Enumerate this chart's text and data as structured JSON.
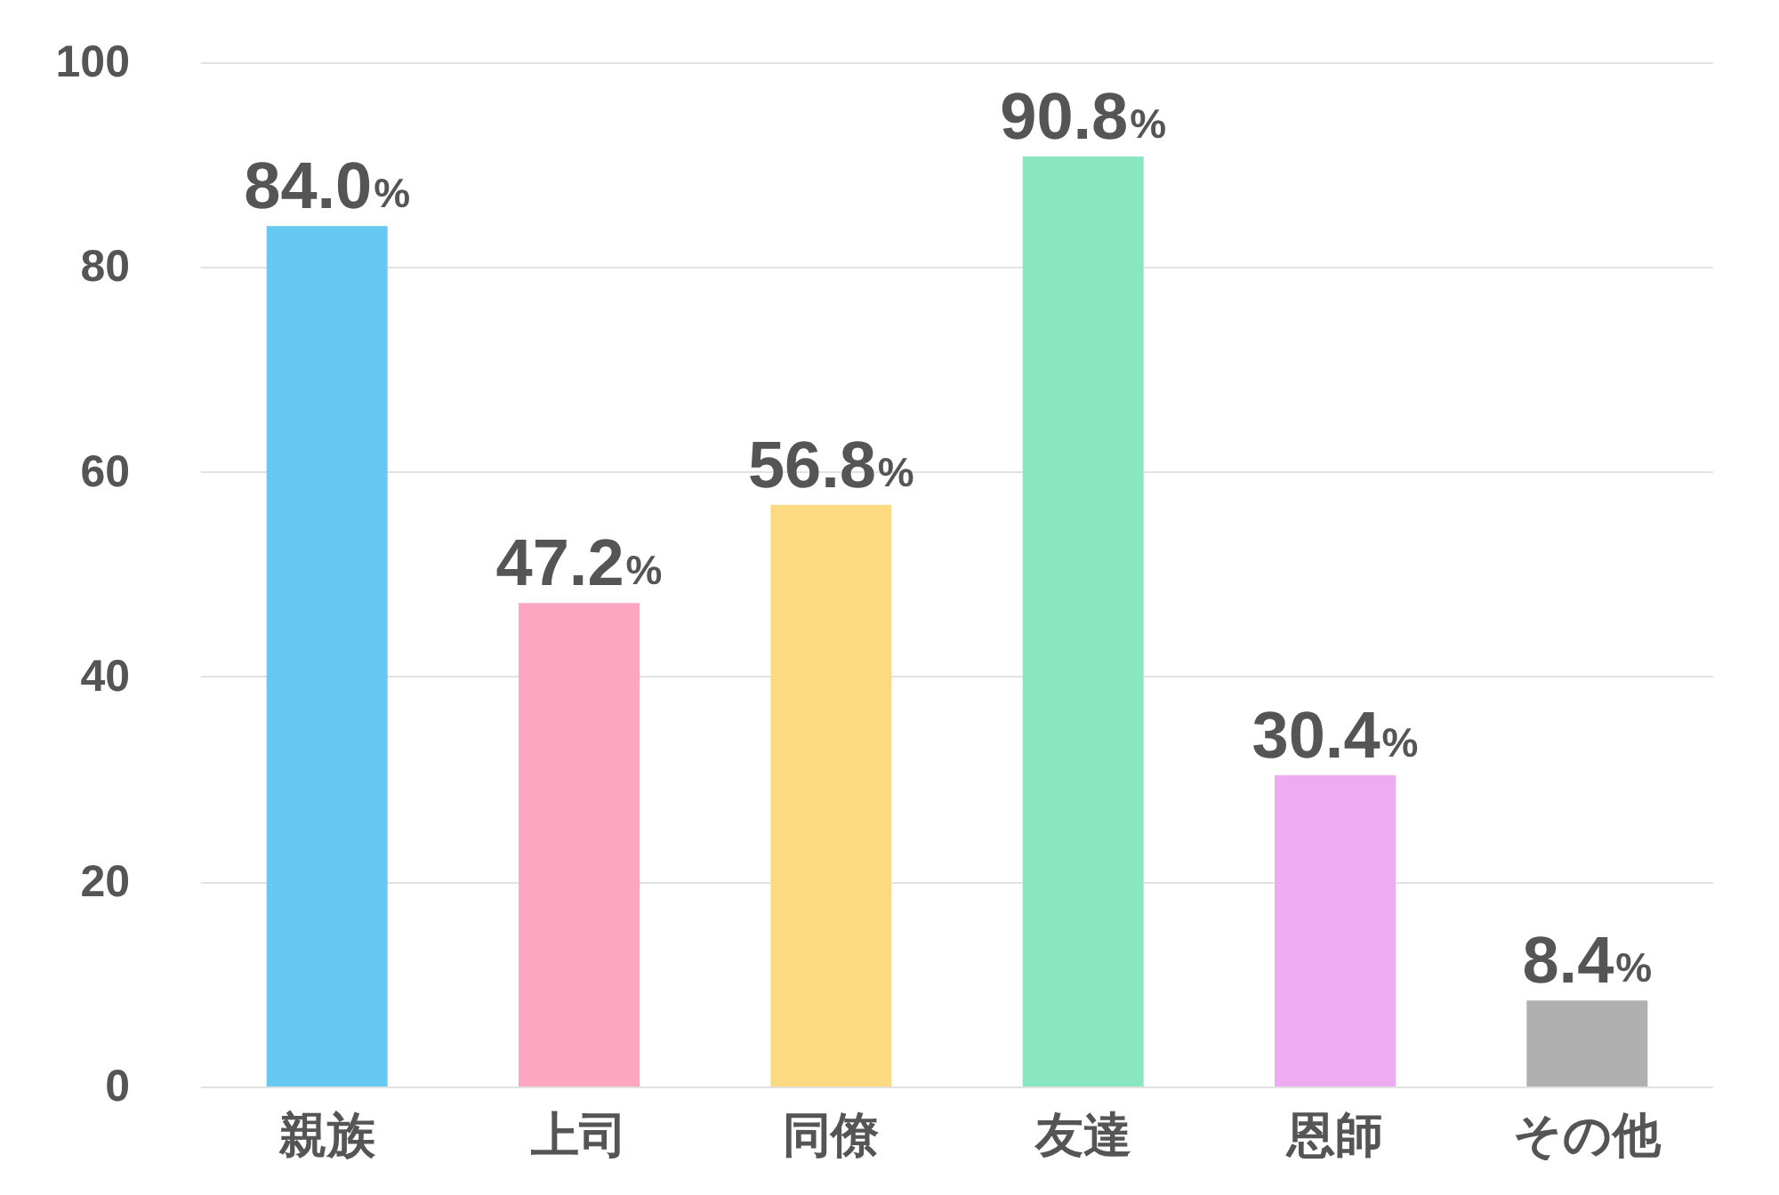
{
  "chart_data": {
    "type": "bar",
    "categories": [
      "親族",
      "上司",
      "同僚",
      "友達",
      "恩師",
      "その他"
    ],
    "values": [
      84.0,
      47.2,
      56.8,
      90.8,
      30.4,
      8.4
    ],
    "colors": [
      "#67c9f2",
      "#fca6c1",
      "#fdd982",
      "#88e6c0",
      "#eeabf2",
      "#b0b0b0"
    ],
    "value_labels": [
      "84.0%",
      "47.2%",
      "56.8%",
      "90.8%",
      "30.4%",
      "8.4%"
    ],
    "ylim": [
      0,
      100
    ],
    "yticks": [
      0,
      20,
      40,
      60,
      80,
      100
    ],
    "grid": "y"
  }
}
